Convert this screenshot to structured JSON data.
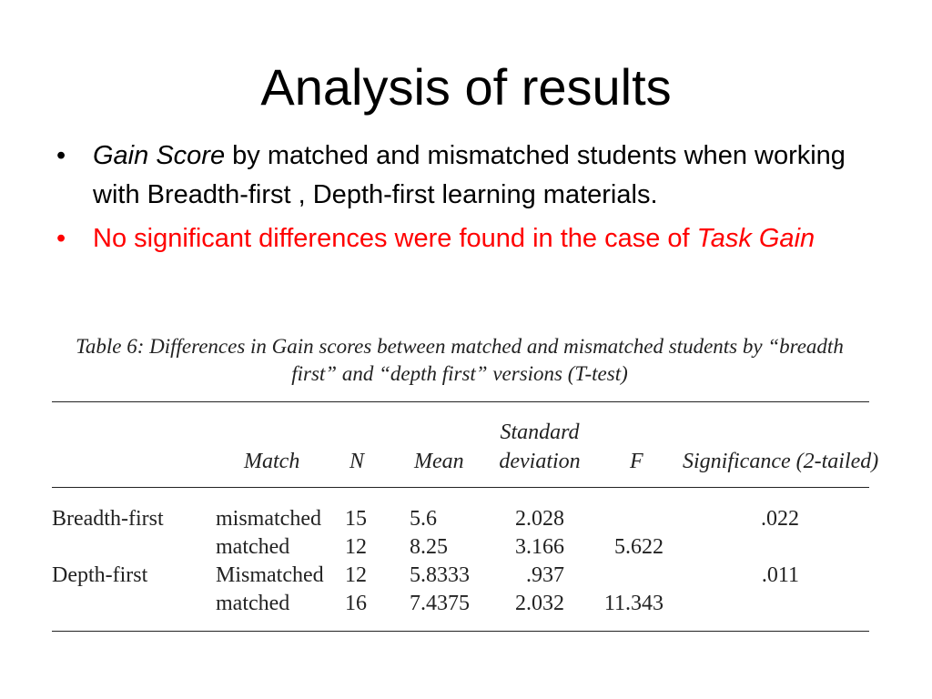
{
  "title": "Analysis of results",
  "bullets": [
    {
      "marker": "•",
      "italic_prefix": "Gain Score",
      "text": " by matched and mismatched students when working with Breadth-first , Depth-first learning materials.",
      "color": "#000000"
    },
    {
      "marker": "•",
      "text": "No significant differences were found in the case of ",
      "italic_suffix": "Task Gain",
      "color": "#ff0000"
    }
  ],
  "table": {
    "caption_prefix": "Table 6:",
    "caption_text": "Differences in Gain scores between matched and mismatched students by “breadth first” and “depth first” versions (T-test)",
    "headers": {
      "match": "Match",
      "n": "N",
      "mean": "Mean",
      "sd_line1": "Standard",
      "sd_line2": "deviation",
      "f": "F",
      "significance": "Significance (2-tailed)"
    },
    "rows": [
      {
        "version": "Breadth-first",
        "match": "mismatched",
        "n": "15",
        "mean": "5.6",
        "sd": "2.028",
        "f": "",
        "significance": ".022"
      },
      {
        "version": "",
        "match": "matched",
        "n": "12",
        "mean": "8.25",
        "sd": "3.166",
        "f": "5.622",
        "significance": ""
      },
      {
        "version": "Depth-first",
        "match": "Mismatched",
        "n": "12",
        "mean": "5.8333",
        "sd": ".937",
        "f": "",
        "significance": ".011"
      },
      {
        "version": "",
        "match": "matched",
        "n": "16",
        "mean": "7.4375",
        "sd": "2.032",
        "f": "11.343",
        "significance": ""
      }
    ]
  }
}
